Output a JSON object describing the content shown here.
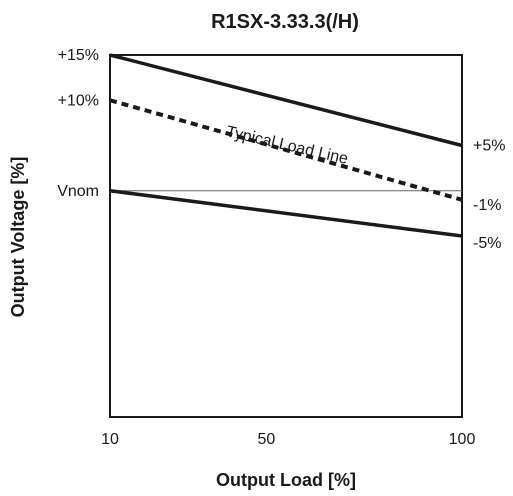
{
  "chart_data": {
    "type": "line",
    "title": "R1SX-3.33.3(/H)",
    "xlabel": "Output Load [%]",
    "ylabel": "Output Voltage [%]",
    "x_ticks": [
      "10",
      "50",
      "100"
    ],
    "y_ticks": [
      "+15%",
      "+10%",
      "Vnom"
    ],
    "right_labels": [
      "+5%",
      "-1%",
      "-5%"
    ],
    "xlim": [
      10,
      100
    ],
    "ylim": [
      -25,
      15
    ],
    "grid": false,
    "series": [
      {
        "style": "solid",
        "color": "#1a1a1a",
        "x": [
          10,
          100
        ],
        "y": [
          15,
          5
        ]
      },
      {
        "name": "Typical Load Line",
        "style": "dashed",
        "color": "#1a1a1a",
        "x": [
          10,
          100
        ],
        "y": [
          10,
          -1
        ]
      },
      {
        "style": "solid",
        "color": "#1a1a1a",
        "x": [
          10,
          100
        ],
        "y": [
          0,
          -5
        ]
      }
    ],
    "reference_line": {
      "y": 0,
      "color": "#666666"
    }
  }
}
